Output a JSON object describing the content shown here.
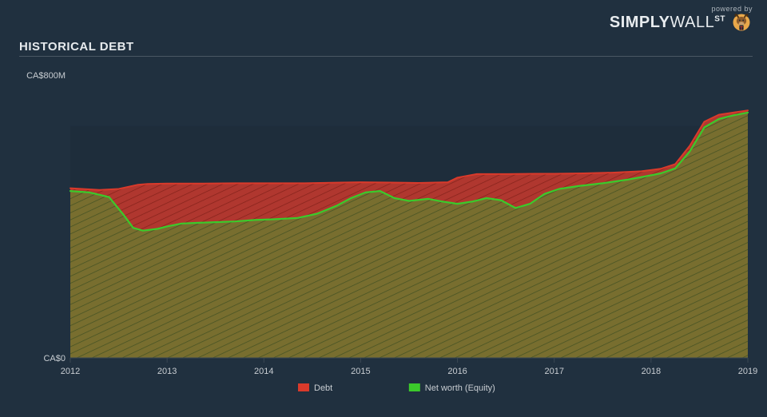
{
  "branding": {
    "powered_by": "powered by",
    "logo_primary": "SIMPLY",
    "logo_secondary": "WALL",
    "logo_suffix": "ST"
  },
  "title": "HISTORICAL DEBT",
  "chart": {
    "type": "area",
    "background_color": "#20303f",
    "plot_shade_color": "#1b2937",
    "grid_color": "#3a4753",
    "text_color": "#c8cdd2",
    "x": {
      "min": 2012,
      "max": 2019,
      "ticks": [
        2012,
        2013,
        2014,
        2015,
        2016,
        2017,
        2018,
        2019
      ]
    },
    "y": {
      "min": 0,
      "max": 800,
      "unit_prefix": "CA$",
      "unit_suffix": "M",
      "label_top": "CA$800M",
      "label_bottom": "CA$0"
    },
    "series": [
      {
        "name": "Debt",
        "stroke": "#d93a2b",
        "stroke_width": 2,
        "fill": "#d93a2b",
        "fill_opacity": 0.78,
        "hatch": true,
        "hatch_color": "#7d1f18",
        "points": [
          [
            2012.0,
            480
          ],
          [
            2012.3,
            475
          ],
          [
            2012.5,
            478
          ],
          [
            2012.7,
            490
          ],
          [
            2012.8,
            492
          ],
          [
            2013.0,
            493
          ],
          [
            2013.3,
            493
          ],
          [
            2013.7,
            494
          ],
          [
            2014.0,
            494
          ],
          [
            2014.4,
            494
          ],
          [
            2014.8,
            496
          ],
          [
            2015.0,
            497
          ],
          [
            2015.3,
            496
          ],
          [
            2015.6,
            495
          ],
          [
            2015.9,
            497
          ],
          [
            2016.0,
            510
          ],
          [
            2016.2,
            520
          ],
          [
            2016.5,
            520
          ],
          [
            2016.8,
            521
          ],
          [
            2017.0,
            521
          ],
          [
            2017.3,
            522
          ],
          [
            2017.6,
            524
          ],
          [
            2017.9,
            528
          ],
          [
            2018.1,
            535
          ],
          [
            2018.25,
            548
          ],
          [
            2018.4,
            600
          ],
          [
            2018.55,
            668
          ],
          [
            2018.7,
            688
          ],
          [
            2018.85,
            694
          ],
          [
            2019.0,
            700
          ]
        ]
      },
      {
        "name": "Net worth (Equity)",
        "stroke": "#3bca2b",
        "stroke_width": 2.2,
        "fill": "#6b7a2f",
        "fill_opacity": 0.82,
        "hatch": true,
        "hatch_color": "#3f4f22",
        "points": [
          [
            2012.0,
            472
          ],
          [
            2012.2,
            468
          ],
          [
            2012.4,
            455
          ],
          [
            2012.55,
            405
          ],
          [
            2012.65,
            368
          ],
          [
            2012.75,
            360
          ],
          [
            2012.9,
            365
          ],
          [
            2013.0,
            372
          ],
          [
            2013.15,
            380
          ],
          [
            2013.3,
            382
          ],
          [
            2013.5,
            384
          ],
          [
            2013.7,
            386
          ],
          [
            2013.9,
            390
          ],
          [
            2014.1,
            392
          ],
          [
            2014.35,
            396
          ],
          [
            2014.55,
            408
          ],
          [
            2014.75,
            430
          ],
          [
            2014.9,
            452
          ],
          [
            2015.05,
            468
          ],
          [
            2015.2,
            472
          ],
          [
            2015.35,
            452
          ],
          [
            2015.5,
            444
          ],
          [
            2015.7,
            450
          ],
          [
            2015.85,
            442
          ],
          [
            2016.0,
            436
          ],
          [
            2016.15,
            442
          ],
          [
            2016.3,
            452
          ],
          [
            2016.45,
            446
          ],
          [
            2016.6,
            424
          ],
          [
            2016.75,
            436
          ],
          [
            2016.9,
            464
          ],
          [
            2017.05,
            478
          ],
          [
            2017.25,
            486
          ],
          [
            2017.5,
            494
          ],
          [
            2017.75,
            504
          ],
          [
            2017.95,
            514
          ],
          [
            2018.1,
            522
          ],
          [
            2018.25,
            536
          ],
          [
            2018.4,
            584
          ],
          [
            2018.55,
            652
          ],
          [
            2018.7,
            676
          ],
          [
            2018.85,
            686
          ],
          [
            2019.0,
            694
          ]
        ]
      }
    ],
    "legend": {
      "items": [
        {
          "label": "Debt",
          "swatch": "#d93a2b"
        },
        {
          "label": "Net worth (Equity)",
          "swatch": "#3bca2b"
        }
      ]
    }
  }
}
